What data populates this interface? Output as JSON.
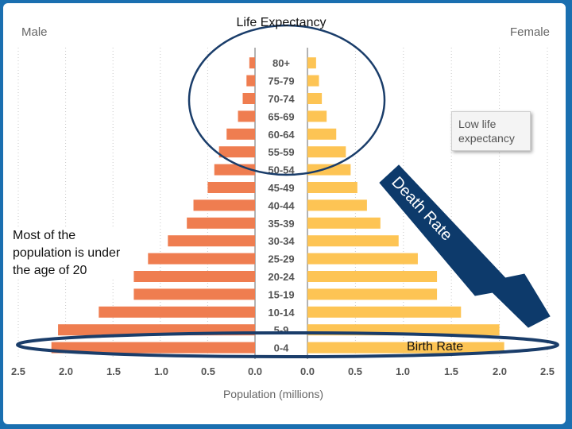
{
  "chart_data": {
    "type": "bar",
    "orientation": "horizontal-pyramid",
    "left_label": "Male",
    "right_label": "Female",
    "xlabel": "Population (millions)",
    "xlim": [
      0,
      2.5
    ],
    "ticks": [
      "2.5",
      "2.0",
      "1.5",
      "1.0",
      "0.5",
      "0.0",
      "0.0",
      "0.5",
      "1.0",
      "1.5",
      "2.0",
      "2.5"
    ],
    "categories": [
      "80+",
      "75-79",
      "70-74",
      "65-69",
      "60-64",
      "55-59",
      "50-54",
      "45-49",
      "40-44",
      "35-39",
      "30-34",
      "25-29",
      "20-24",
      "15-19",
      "10-14",
      "5-9",
      "0-4"
    ],
    "series": [
      {
        "name": "Male",
        "values": [
          0.06,
          0.09,
          0.13,
          0.18,
          0.3,
          0.38,
          0.43,
          0.5,
          0.65,
          0.72,
          0.92,
          1.13,
          1.28,
          1.28,
          1.65,
          2.08,
          2.15
        ]
      },
      {
        "name": "Female",
        "values": [
          0.09,
          0.12,
          0.15,
          0.2,
          0.3,
          0.4,
          0.45,
          0.52,
          0.62,
          0.76,
          0.95,
          1.15,
          1.35,
          1.35,
          1.6,
          2.0,
          2.05
        ]
      }
    ],
    "colors": {
      "male": "#ef7d50",
      "female": "#fdc454",
      "axis": "#9a9a9a",
      "annotation": "#0d3a6b"
    }
  },
  "annotations": {
    "life_expectancy": "Life Expectancy",
    "death_rate": "Death Rate",
    "birth_rate": "Birth Rate",
    "low_life_expectancy": "Low life expectancy",
    "side_note": "Most of the population is under the age of 20"
  }
}
